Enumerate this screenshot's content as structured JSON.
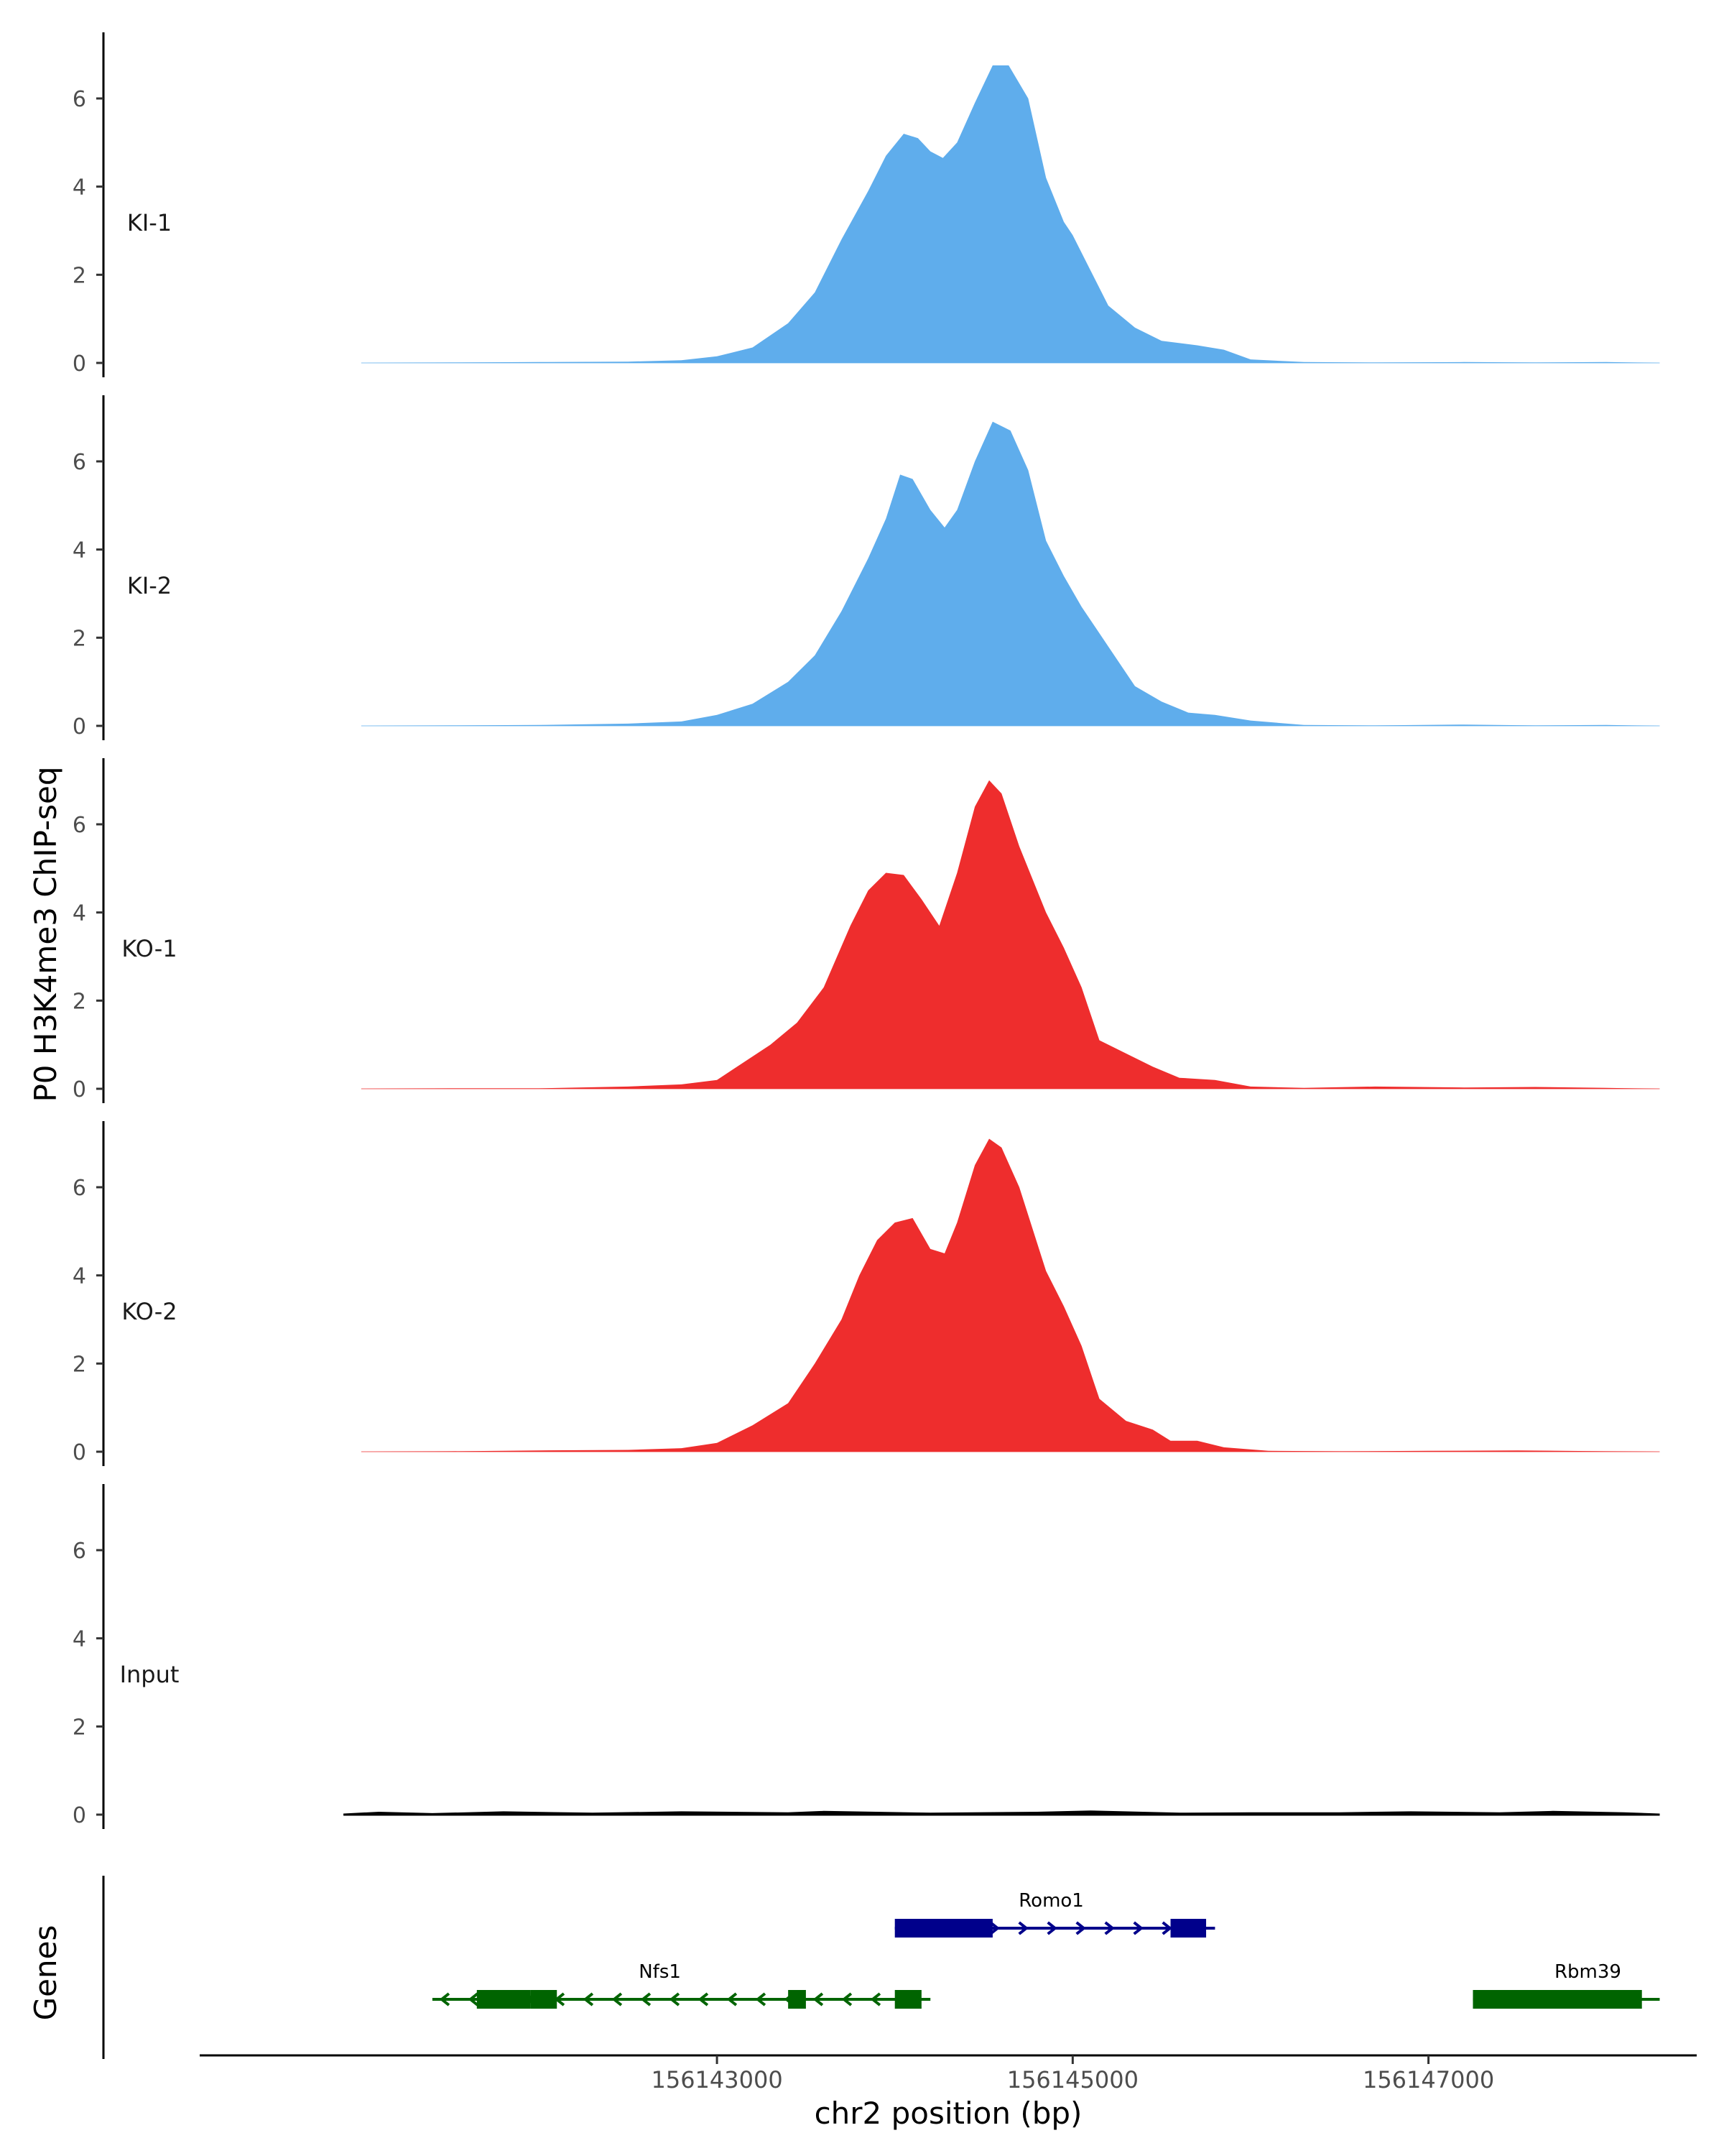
{
  "chart_data": {
    "type": "area",
    "title": "",
    "ylabel": "P0 H3K4me3 ChIP-seq",
    "xlabel": "chr2 position (bp)",
    "ylim": [
      0,
      7.5
    ],
    "y_ticks": [
      0,
      2,
      4,
      6
    ],
    "xlim": [
      156140100,
      156148500
    ],
    "x_ticks": [
      156143000,
      156145000,
      156147000
    ],
    "x_tick_labels": [
      "156143000",
      "156145000",
      "156147000"
    ],
    "tracks": [
      {
        "name": "KI-1",
        "color": "#5fadec",
        "points": [
          [
            156141000,
            0
          ],
          [
            156141500,
            0.01
          ],
          [
            156142000,
            0.02
          ],
          [
            156142500,
            0.03
          ],
          [
            156142800,
            0.06
          ],
          [
            156143000,
            0.15
          ],
          [
            156143200,
            0.35
          ],
          [
            156143400,
            0.9
          ],
          [
            156143550,
            1.6
          ],
          [
            156143700,
            2.8
          ],
          [
            156143850,
            3.9
          ],
          [
            156143950,
            4.7
          ],
          [
            156144050,
            5.2
          ],
          [
            156144130,
            5.1
          ],
          [
            156144200,
            4.8
          ],
          [
            156144270,
            4.65
          ],
          [
            156144350,
            5.0
          ],
          [
            156144450,
            5.9
          ],
          [
            156144550,
            6.75
          ],
          [
            156144640,
            6.75
          ],
          [
            156144750,
            6.0
          ],
          [
            156144850,
            4.2
          ],
          [
            156144950,
            3.2
          ],
          [
            156145000,
            2.9
          ],
          [
            156145100,
            2.1
          ],
          [
            156145200,
            1.3
          ],
          [
            156145350,
            0.8
          ],
          [
            156145500,
            0.5
          ],
          [
            156145700,
            0.4
          ],
          [
            156145850,
            0.3
          ],
          [
            156146000,
            0.08
          ],
          [
            156146300,
            0.02
          ],
          [
            156146700,
            0.01
          ],
          [
            156147200,
            0.02
          ],
          [
            156147600,
            0.01
          ],
          [
            156148000,
            0.02
          ],
          [
            156148300,
            0
          ]
        ]
      },
      {
        "name": "KI-2",
        "color": "#5fadec",
        "points": [
          [
            156141000,
            0
          ],
          [
            156141500,
            0.01
          ],
          [
            156142000,
            0.02
          ],
          [
            156142500,
            0.05
          ],
          [
            156142800,
            0.1
          ],
          [
            156143000,
            0.25
          ],
          [
            156143200,
            0.5
          ],
          [
            156143400,
            1.0
          ],
          [
            156143550,
            1.6
          ],
          [
            156143700,
            2.6
          ],
          [
            156143850,
            3.8
          ],
          [
            156143950,
            4.7
          ],
          [
            156144030,
            5.7
          ],
          [
            156144100,
            5.6
          ],
          [
            156144200,
            4.9
          ],
          [
            156144280,
            4.5
          ],
          [
            156144350,
            4.9
          ],
          [
            156144450,
            6.0
          ],
          [
            156144550,
            6.9
          ],
          [
            156144650,
            6.7
          ],
          [
            156144750,
            5.8
          ],
          [
            156144850,
            4.2
          ],
          [
            156144950,
            3.4
          ],
          [
            156145050,
            2.7
          ],
          [
            156145200,
            1.8
          ],
          [
            156145350,
            0.9
          ],
          [
            156145500,
            0.55
          ],
          [
            156145650,
            0.3
          ],
          [
            156145800,
            0.25
          ],
          [
            156146000,
            0.12
          ],
          [
            156146300,
            0.02
          ],
          [
            156146700,
            0.01
          ],
          [
            156147200,
            0.03
          ],
          [
            156147600,
            0.01
          ],
          [
            156148000,
            0.02
          ],
          [
            156148300,
            0
          ]
        ]
      },
      {
        "name": "KO-1",
        "color": "#ee2d2d",
        "points": [
          [
            156141000,
            0
          ],
          [
            156141500,
            0.01
          ],
          [
            156142000,
            0.01
          ],
          [
            156142500,
            0.05
          ],
          [
            156142800,
            0.1
          ],
          [
            156143000,
            0.2
          ],
          [
            156143150,
            0.6
          ],
          [
            156143300,
            1.0
          ],
          [
            156143450,
            1.5
          ],
          [
            156143600,
            2.3
          ],
          [
            156143750,
            3.7
          ],
          [
            156143850,
            4.5
          ],
          [
            156143950,
            4.9
          ],
          [
            156144050,
            4.85
          ],
          [
            156144150,
            4.3
          ],
          [
            156144250,
            3.7
          ],
          [
            156144350,
            4.9
          ],
          [
            156144450,
            6.4
          ],
          [
            156144530,
            7.0
          ],
          [
            156144600,
            6.7
          ],
          [
            156144700,
            5.5
          ],
          [
            156144850,
            4.0
          ],
          [
            156144950,
            3.2
          ],
          [
            156145050,
            2.3
          ],
          [
            156145150,
            1.1
          ],
          [
            156145300,
            0.8
          ],
          [
            156145450,
            0.5
          ],
          [
            156145600,
            0.25
          ],
          [
            156145800,
            0.2
          ],
          [
            156146000,
            0.05
          ],
          [
            156146300,
            0.02
          ],
          [
            156146700,
            0.05
          ],
          [
            156147200,
            0.03
          ],
          [
            156147600,
            0.04
          ],
          [
            156148000,
            0.02
          ],
          [
            156148300,
            0
          ]
        ]
      },
      {
        "name": "KO-2",
        "color": "#ee2d2d",
        "points": [
          [
            156141000,
            0
          ],
          [
            156141500,
            0.01
          ],
          [
            156142000,
            0.03
          ],
          [
            156142500,
            0.04
          ],
          [
            156142800,
            0.08
          ],
          [
            156143000,
            0.2
          ],
          [
            156143200,
            0.6
          ],
          [
            156143400,
            1.1
          ],
          [
            156143550,
            2.0
          ],
          [
            156143700,
            3.0
          ],
          [
            156143800,
            4.0
          ],
          [
            156143900,
            4.8
          ],
          [
            156144000,
            5.2
          ],
          [
            156144100,
            5.3
          ],
          [
            156144200,
            4.6
          ],
          [
            156144280,
            4.5
          ],
          [
            156144350,
            5.2
          ],
          [
            156144450,
            6.5
          ],
          [
            156144530,
            7.1
          ],
          [
            156144600,
            6.9
          ],
          [
            156144700,
            6.0
          ],
          [
            156144850,
            4.1
          ],
          [
            156144950,
            3.3
          ],
          [
            156145050,
            2.4
          ],
          [
            156145150,
            1.2
          ],
          [
            156145300,
            0.7
          ],
          [
            156145450,
            0.5
          ],
          [
            156145550,
            0.25
          ],
          [
            156145700,
            0.25
          ],
          [
            156145850,
            0.1
          ],
          [
            156146100,
            0.02
          ],
          [
            156146500,
            0.01
          ],
          [
            156147000,
            0.02
          ],
          [
            156147500,
            0.03
          ],
          [
            156148000,
            0.01
          ],
          [
            156148300,
            0
          ]
        ]
      },
      {
        "name": "Input",
        "color": "#000000",
        "points": [
          [
            156140900,
            0
          ],
          [
            156141100,
            0.04
          ],
          [
            156141400,
            0.01
          ],
          [
            156141800,
            0.05
          ],
          [
            156142300,
            0.02
          ],
          [
            156142800,
            0.05
          ],
          [
            156143400,
            0.03
          ],
          [
            156143600,
            0.06
          ],
          [
            156144200,
            0.02
          ],
          [
            156144800,
            0.04
          ],
          [
            156145100,
            0.07
          ],
          [
            156145600,
            0.02
          ],
          [
            156146000,
            0.03
          ],
          [
            156146500,
            0.03
          ],
          [
            156146900,
            0.05
          ],
          [
            156147400,
            0.03
          ],
          [
            156147700,
            0.06
          ],
          [
            156148100,
            0.03
          ],
          [
            156148300,
            0
          ]
        ]
      }
    ],
    "genes_panel": {
      "label": "Genes",
      "genes": [
        {
          "name": "Romo1",
          "strand": "+",
          "color": "#00008b",
          "row": 1,
          "start": 156144000,
          "end": 156145800,
          "exons": [
            [
              156144000,
              156144550
            ],
            [
              156145550,
              156145750
            ]
          ]
        },
        {
          "name": "Nfs1",
          "strand": "-",
          "color": "#006400",
          "row": 2,
          "start": 156141400,
          "end": 156144200,
          "exons": [
            [
              156141650,
              156141950
            ],
            [
              156141950,
              156142100
            ],
            [
              156143400,
              156143500
            ],
            [
              156144000,
              156144150
            ]
          ]
        },
        {
          "name": "Rbm39",
          "strand": "-",
          "color": "#006400",
          "row": 2,
          "start": 156147250,
          "end": 156148300,
          "exons": [
            [
              156147250,
              156148200
            ]
          ]
        }
      ]
    }
  }
}
